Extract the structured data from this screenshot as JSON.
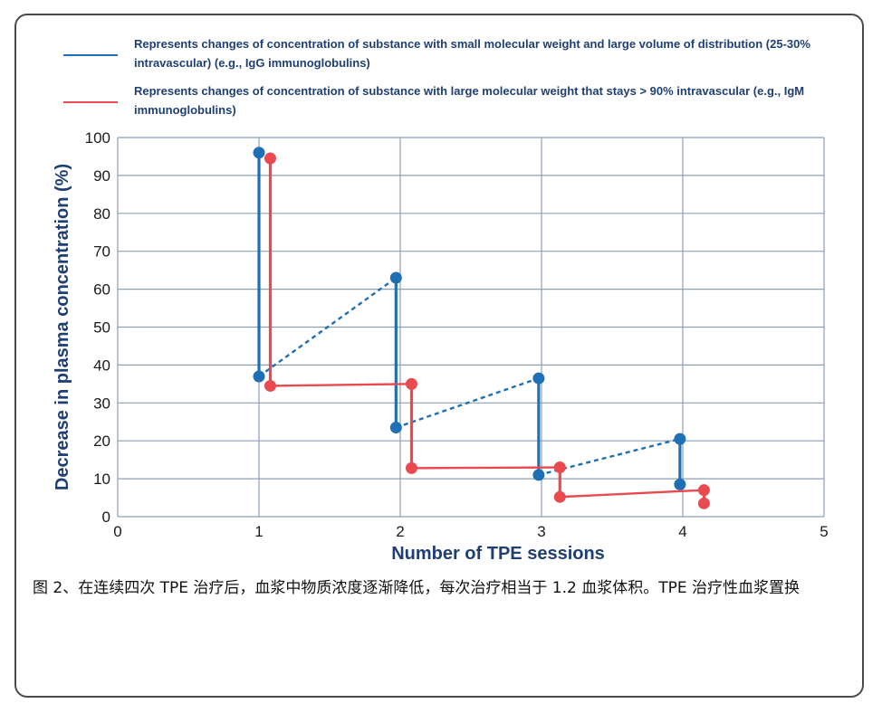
{
  "legend": [
    {
      "color": "#1f6fb5",
      "text": "Represents changes of concentration of substance with small molecular weight and large volume of distribution (25-30% intravascular) (e.g.,  IgG immunoglobulins)"
    },
    {
      "color": "#e84a4f",
      "text": "Represents changes of concentration of substance with large molecular weight that stays > 90% intravascular (e.g., IgM immunoglobulins)"
    }
  ],
  "chart_data": {
    "type": "line",
    "title": "",
    "xlabel": "Number of TPE sessions",
    "ylabel": "Decrease in plasma concentration (%)",
    "xlim": [
      0,
      5
    ],
    "ylim": [
      0,
      100
    ],
    "xticks": [
      "0",
      "1",
      "2",
      "3",
      "4",
      "5"
    ],
    "yticks": [
      "0",
      "10",
      "20",
      "30",
      "40",
      "50",
      "60",
      "70",
      "80",
      "90",
      "100"
    ],
    "grid": true,
    "series": [
      {
        "color": "#1f6fb5",
        "drops": [
          {
            "x": 1.0,
            "from": 96,
            "to": 37
          },
          {
            "x": 1.97,
            "from": 63,
            "to": 23.5
          },
          {
            "x": 2.98,
            "from": 36.5,
            "to": 11
          },
          {
            "x": 3.98,
            "from": 20.5,
            "to": 8.5
          }
        ],
        "rebounds": [
          {
            "x1": 1.0,
            "y1": 37,
            "x2": 1.97,
            "y2": 63
          },
          {
            "x1": 1.97,
            "y1": 23.5,
            "x2": 2.98,
            "y2": 36.5
          },
          {
            "x1": 2.98,
            "y1": 11,
            "x2": 3.98,
            "y2": 20.5
          }
        ]
      },
      {
        "color": "#e84a4f",
        "drops": [
          {
            "x": 1.08,
            "from": 94.5,
            "to": 34.5
          },
          {
            "x": 2.08,
            "from": 35,
            "to": 12.8
          },
          {
            "x": 3.13,
            "from": 13,
            "to": 5.2
          },
          {
            "x": 4.15,
            "from": 7,
            "to": 3.5
          }
        ],
        "connectors": [
          {
            "x1": 1.08,
            "y1": 34.5,
            "x2": 2.08,
            "y2": 35
          },
          {
            "x1": 2.08,
            "y1": 12.8,
            "x2": 3.13,
            "y2": 13
          },
          {
            "x1": 3.13,
            "y1": 5.2,
            "x2": 4.15,
            "y2": 7
          }
        ]
      }
    ]
  },
  "caption": "图 2、在连续四次 TPE 治疗后，血浆中物质浓度逐渐降低，每次治疗相当于 1.2 血浆体积。TPE 治疗性血浆置换"
}
